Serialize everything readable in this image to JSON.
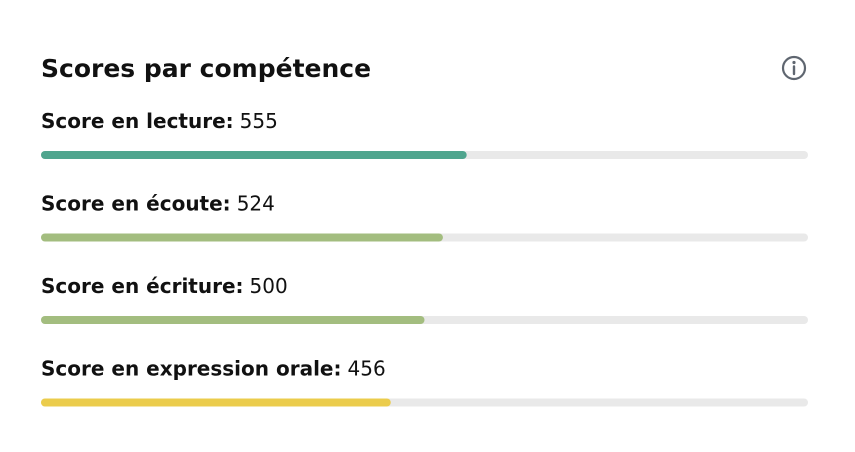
{
  "chart_data": {
    "type": "progress",
    "title": "Scores par compétence",
    "categories": [
      "Score en lecture:",
      "Score en écoute:",
      "Score en écriture:",
      "Score en expression orale:"
    ],
    "values": [
      555,
      524,
      500,
      456
    ],
    "colors": [
      "#4fa58e",
      "#a3bd7f",
      "#a3bd7f",
      "#ebcc4c"
    ],
    "xlim": [
      0,
      1000
    ]
  }
}
